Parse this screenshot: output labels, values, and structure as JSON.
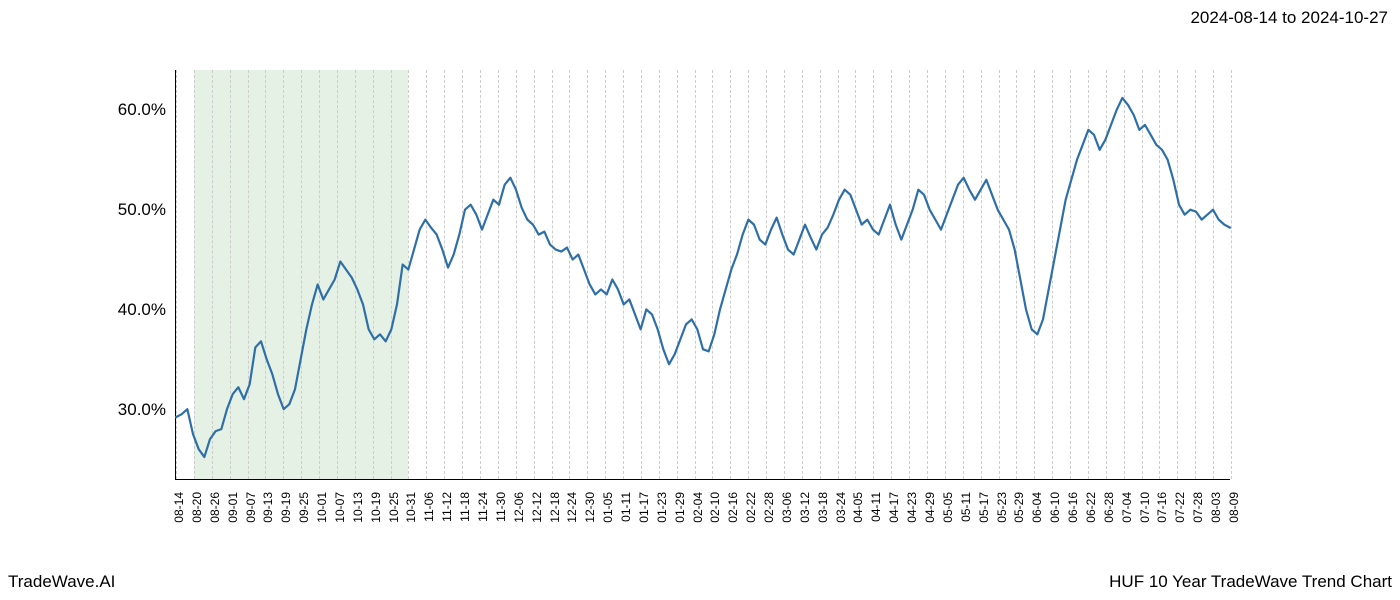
{
  "date_range": "2024-08-14 to 2024-10-27",
  "footer_left": "TradeWave.AI",
  "footer_right": "HUF 10 Year TradeWave Trend Chart",
  "chart": {
    "type": "line",
    "background_color": "#ffffff",
    "line_color": "#2f6fa7",
    "line_width": 2.2,
    "grid_color": "#cccccc",
    "highlight_color": "#d4e8d4",
    "highlight_opacity": 0.6,
    "y_axis": {
      "min": 23,
      "max": 64,
      "ticks": [
        30,
        40,
        50,
        60
      ],
      "tick_labels": [
        "30.0%",
        "40.0%",
        "50.0%",
        "60.0%"
      ],
      "tick_fontsize": 17
    },
    "x_axis": {
      "labels": [
        "08-14",
        "08-20",
        "08-26",
        "09-01",
        "09-07",
        "09-13",
        "09-19",
        "09-25",
        "10-01",
        "10-07",
        "10-13",
        "10-19",
        "10-25",
        "10-31",
        "11-06",
        "11-12",
        "11-18",
        "11-24",
        "11-30",
        "12-06",
        "12-12",
        "12-18",
        "12-24",
        "12-30",
        "01-05",
        "01-11",
        "01-17",
        "01-23",
        "01-29",
        "02-04",
        "02-10",
        "02-16",
        "02-22",
        "02-28",
        "03-06",
        "03-12",
        "03-18",
        "03-24",
        "04-05",
        "04-11",
        "04-17",
        "04-23",
        "04-29",
        "05-05",
        "05-11",
        "05-17",
        "05-23",
        "05-29",
        "06-04",
        "06-10",
        "06-16",
        "06-22",
        "06-28",
        "07-04",
        "07-10",
        "07-16",
        "07-22",
        "07-28",
        "08-03",
        "08-09"
      ],
      "tick_fontsize": 12
    },
    "highlight_range": {
      "start_index": 1,
      "end_index": 13
    },
    "series": {
      "values": [
        29.2,
        29.5,
        30.0,
        27.5,
        26.0,
        25.2,
        27.0,
        27.8,
        28.0,
        30.0,
        31.5,
        32.2,
        31.0,
        32.5,
        36.2,
        36.8,
        35.0,
        33.5,
        31.5,
        30.0,
        30.5,
        32.0,
        35.0,
        38.0,
        40.5,
        42.5,
        41.0,
        42.0,
        43.0,
        44.8,
        44.0,
        43.2,
        42.0,
        40.5,
        38.0,
        37.0,
        37.5,
        36.8,
        38.0,
        40.5,
        44.5,
        44.0,
        46.0,
        48.0,
        49.0,
        48.2,
        47.5,
        46.0,
        44.2,
        45.5,
        47.5,
        50.0,
        50.5,
        49.5,
        48.0,
        49.5,
        51.0,
        50.5,
        52.5,
        53.2,
        52.0,
        50.2,
        49.0,
        48.5,
        47.5,
        47.8,
        46.5,
        46.0,
        45.8,
        46.2,
        45.0,
        45.5,
        44.0,
        42.5,
        41.5,
        42.0,
        41.5,
        43.0,
        42.0,
        40.5,
        41.0,
        39.5,
        38.0,
        40.0,
        39.5,
        38.0,
        36.0,
        34.5,
        35.5,
        37.0,
        38.5,
        39.0,
        38.0,
        36.0,
        35.8,
        37.5,
        40.0,
        42.0,
        44.0,
        45.5,
        47.5,
        49.0,
        48.5,
        47.0,
        46.5,
        48.0,
        49.2,
        47.5,
        46.0,
        45.5,
        47.0,
        48.5,
        47.2,
        46.0,
        47.5,
        48.2,
        49.5,
        51.0,
        52.0,
        51.5,
        50.0,
        48.5,
        49.0,
        48.0,
        47.5,
        49.0,
        50.5,
        48.5,
        47.0,
        48.5,
        50.0,
        52.0,
        51.5,
        50.0,
        49.0,
        48.0,
        49.5,
        51.0,
        52.5,
        53.2,
        52.0,
        51.0,
        52.0,
        53.0,
        51.5,
        50.0,
        49.0,
        48.0,
        46.0,
        43.0,
        40.0,
        38.0,
        37.5,
        39.0,
        42.0,
        45.0,
        48.0,
        51.0,
        53.0,
        55.0,
        56.5,
        58.0,
        57.5,
        56.0,
        57.0,
        58.5,
        60.0,
        61.2,
        60.5,
        59.5,
        58.0,
        58.5,
        57.5,
        56.5,
        56.0,
        55.0,
        53.0,
        50.5,
        49.5,
        50.0,
        49.8,
        49.0,
        49.5,
        50.0,
        49.0,
        48.5,
        48.2
      ]
    }
  }
}
